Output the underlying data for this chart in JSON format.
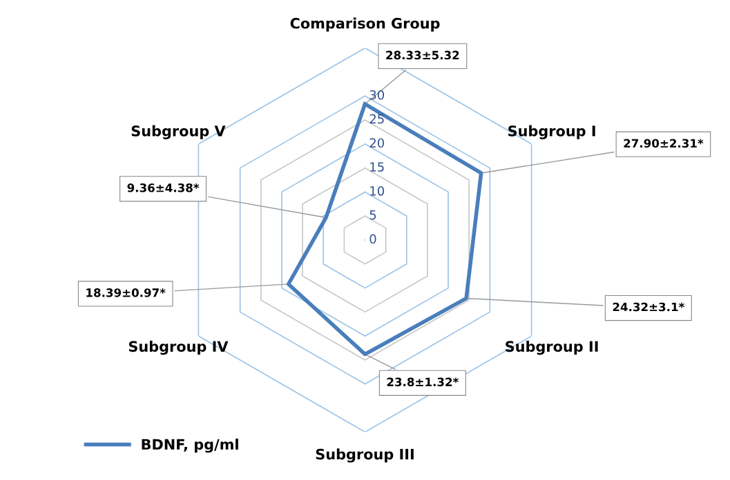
{
  "chart_data": {
    "type": "radar",
    "categories": [
      "Comparison Group",
      "Subgroup I",
      "Subgroup II",
      "Subgroup III",
      "Subgroup IV",
      "Subgroup V"
    ],
    "series": [
      {
        "name": "BDNF, pg/ml",
        "color": "#4a7ebb",
        "values": [
          28.33,
          27.9,
          24.32,
          23.8,
          18.39,
          9.36
        ],
        "value_labels": [
          "28.33±5.32",
          "27.90±2.31*",
          "24.32±3.1*",
          "23.8±1.32*",
          "18.39±0.97*",
          "9.36±4.38*"
        ]
      }
    ],
    "ylim": [
      0,
      40
    ],
    "yticks": [
      0,
      5,
      10,
      15,
      20,
      25,
      30
    ],
    "grid": true,
    "legend": "bottom left"
  }
}
